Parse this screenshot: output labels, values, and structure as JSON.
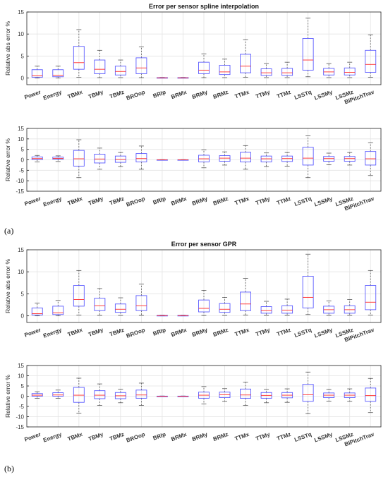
{
  "figure_labels": [
    "(a)",
    "(b)"
  ],
  "colors": {
    "box": "#5a5aff",
    "median": "#ff2a2a",
    "whisker": "#555555",
    "grid": "#e3e3e3",
    "frame": "#222222"
  },
  "chart_data": [
    {
      "type": "box",
      "title": "Error per sensor spline interpolation",
      "ylabel": "Relative abs error %",
      "ylim": [
        -1.5,
        15
      ],
      "yticks": [
        0,
        5,
        10,
        15
      ],
      "grid": true,
      "categories": [
        "Power",
        "Energy",
        "TBMx",
        "TBMy",
        "TBMz",
        "BROop",
        "BRIp",
        "BRMx",
        "BRMy",
        "BRMz",
        "TTMx",
        "TTMy",
        "TTMz",
        "LSSTq",
        "LSSMy",
        "LSSMz",
        "BlPitchTrav"
      ],
      "boxes": [
        {
          "lw": 0,
          "q1": 0.2,
          "med": 0.5,
          "q3": 1.9,
          "uw": 2.7
        },
        {
          "lw": 0,
          "q1": 0.3,
          "med": 0.6,
          "q3": 1.9,
          "uw": 2.7
        },
        {
          "lw": 0.2,
          "q1": 2.0,
          "med": 3.5,
          "q3": 7.2,
          "uw": 11.0
        },
        {
          "lw": 0.1,
          "q1": 1.0,
          "med": 2.0,
          "q3": 4.1,
          "uw": 6.3
        },
        {
          "lw": 0.1,
          "q1": 0.7,
          "med": 1.5,
          "q3": 2.7,
          "uw": 4.1
        },
        {
          "lw": 0.1,
          "q1": 1.0,
          "med": 2.3,
          "q3": 4.6,
          "uw": 7.1
        },
        {
          "lw": 0,
          "q1": 0.02,
          "med": 0.05,
          "q3": 0.1,
          "uw": 0.15
        },
        {
          "lw": 0,
          "q1": 0.02,
          "med": 0.05,
          "q3": 0.1,
          "uw": 0.15
        },
        {
          "lw": 0.1,
          "q1": 1.0,
          "med": 1.8,
          "q3": 3.6,
          "uw": 5.5
        },
        {
          "lw": 0.1,
          "q1": 0.8,
          "med": 1.4,
          "q3": 2.9,
          "uw": 4.3
        },
        {
          "lw": 0.2,
          "q1": 1.2,
          "med": 2.7,
          "q3": 5.4,
          "uw": 8.7
        },
        {
          "lw": 0.1,
          "q1": 0.6,
          "med": 1.2,
          "q3": 2.1,
          "uw": 3.3
        },
        {
          "lw": 0.1,
          "q1": 0.6,
          "med": 1.2,
          "q3": 2.2,
          "uw": 3.6
        },
        {
          "lw": 0.3,
          "q1": 1.8,
          "med": 4.1,
          "q3": 9.0,
          "uw": 13.6
        },
        {
          "lw": 0.1,
          "q1": 0.7,
          "med": 1.4,
          "q3": 2.2,
          "uw": 3.3
        },
        {
          "lw": 0.1,
          "q1": 0.7,
          "med": 1.3,
          "q3": 2.3,
          "uw": 3.6
        },
        {
          "lw": 0.2,
          "q1": 1.3,
          "med": 3.1,
          "q3": 6.3,
          "uw": 9.8
        }
      ]
    },
    {
      "type": "box",
      "title": "",
      "ylabel": "Relative error %",
      "ylim": [
        -15,
        15
      ],
      "yticks": [
        -15,
        -10,
        -5,
        0,
        5,
        10,
        15
      ],
      "grid": true,
      "categories": [
        "Power",
        "Energy",
        "TBMx",
        "TBMy",
        "TBMz",
        "BROop",
        "BRIp",
        "BRMx",
        "BRMy",
        "BRMz",
        "TTMx",
        "TTMy",
        "TTMz",
        "LSSTq",
        "LSSMy",
        "LSSMz",
        "BlPitchTrav"
      ],
      "boxes": [
        {
          "lw": -1.0,
          "q1": 0.1,
          "med": 0.6,
          "q3": 1.4,
          "uw": 2.1
        },
        {
          "lw": -0.8,
          "q1": 0.3,
          "med": 0.7,
          "q3": 1.3,
          "uw": 1.9
        },
        {
          "lw": -8.5,
          "q1": -3.0,
          "med": 0.5,
          "q3": 4.5,
          "uw": 9.6
        },
        {
          "lw": -4.5,
          "q1": -1.5,
          "med": 0.4,
          "q3": 2.7,
          "uw": 5.6
        },
        {
          "lw": -3.2,
          "q1": -1.2,
          "med": 0.2,
          "q3": 1.8,
          "uw": 3.5
        },
        {
          "lw": -4.5,
          "q1": -1.0,
          "med": 0.6,
          "q3": 3.0,
          "uw": 6.6
        },
        {
          "lw": -0.1,
          "q1": -0.05,
          "med": 0,
          "q3": 0.05,
          "uw": 0.1
        },
        {
          "lw": -0.1,
          "q1": -0.05,
          "med": 0,
          "q3": 0.05,
          "uw": 0.1
        },
        {
          "lw": -3.8,
          "q1": -1.0,
          "med": 0.5,
          "q3": 2.2,
          "uw": 4.8
        },
        {
          "lw": -2.5,
          "q1": -0.7,
          "med": 0.8,
          "q3": 2.0,
          "uw": 3.8
        },
        {
          "lw": -4.5,
          "q1": -1.0,
          "med": 0.8,
          "q3": 3.6,
          "uw": 6.8
        },
        {
          "lw": -3.2,
          "q1": -1.0,
          "med": 0.5,
          "q3": 1.8,
          "uw": 3.3
        },
        {
          "lw": -3.0,
          "q1": -0.8,
          "med": 0.6,
          "q3": 1.8,
          "uw": 3.5
        },
        {
          "lw": -8.5,
          "q1": -2.5,
          "med": 0.8,
          "q3": 6.0,
          "uw": 11.5
        },
        {
          "lw": -2.4,
          "q1": -0.7,
          "med": 0.6,
          "q3": 1.6,
          "uw": 3.2
        },
        {
          "lw": -2.5,
          "q1": -0.7,
          "med": 0.6,
          "q3": 1.6,
          "uw": 3.5
        },
        {
          "lw": -7.5,
          "q1": -2.5,
          "med": 0.5,
          "q3": 4.0,
          "uw": 8.2
        }
      ]
    },
    {
      "type": "box",
      "title": "Error per sensor GPR",
      "ylabel": "Relative abs error %",
      "ylim": [
        -1.5,
        15
      ],
      "yticks": [
        0,
        5,
        10,
        15
      ],
      "grid": true,
      "categories": [
        "Power",
        "Energy",
        "TBMx",
        "TBMy",
        "TBMz",
        "BROop",
        "BRIp",
        "BRMx",
        "BRMy",
        "BRMz",
        "TTMx",
        "TTMy",
        "TTMz",
        "LSSTq",
        "LSSMy",
        "LSSMz",
        "BlPitchTrav"
      ],
      "boxes": [
        {
          "lw": 0,
          "q1": 0.2,
          "med": 0.5,
          "q3": 1.8,
          "uw": 2.9
        },
        {
          "lw": 0,
          "q1": 0.3,
          "med": 0.7,
          "q3": 2.2,
          "uw": 3.5
        },
        {
          "lw": 0.2,
          "q1": 2.2,
          "med": 3.7,
          "q3": 6.9,
          "uw": 10.3
        },
        {
          "lw": 0.1,
          "q1": 1.2,
          "med": 2.3,
          "q3": 4.0,
          "uw": 6.2
        },
        {
          "lw": 0.1,
          "q1": 0.8,
          "med": 1.5,
          "q3": 2.7,
          "uw": 4.1
        },
        {
          "lw": 0.1,
          "q1": 1.2,
          "med": 2.3,
          "q3": 4.6,
          "uw": 7.2
        },
        {
          "lw": 0,
          "q1": 0.02,
          "med": 0.05,
          "q3": 0.1,
          "uw": 0.15
        },
        {
          "lw": 0,
          "q1": 0.02,
          "med": 0.05,
          "q3": 0.1,
          "uw": 0.15
        },
        {
          "lw": 0.1,
          "q1": 0.9,
          "med": 1.7,
          "q3": 3.6,
          "uw": 5.8
        },
        {
          "lw": 0.1,
          "q1": 0.8,
          "med": 1.5,
          "q3": 2.8,
          "uw": 4.2
        },
        {
          "lw": 0.2,
          "q1": 1.2,
          "med": 2.7,
          "q3": 5.4,
          "uw": 8.5
        },
        {
          "lw": 0.1,
          "q1": 0.6,
          "med": 1.2,
          "q3": 2.1,
          "uw": 3.3
        },
        {
          "lw": 0.1,
          "q1": 0.6,
          "med": 1.3,
          "q3": 2.3,
          "uw": 3.8
        },
        {
          "lw": 0.3,
          "q1": 1.8,
          "med": 4.2,
          "q3": 9.0,
          "uw": 14.0
        },
        {
          "lw": 0.1,
          "q1": 0.6,
          "med": 1.4,
          "q3": 2.2,
          "uw": 3.4
        },
        {
          "lw": 0.1,
          "q1": 0.6,
          "med": 1.4,
          "q3": 2.3,
          "uw": 3.7
        },
        {
          "lw": 0.2,
          "q1": 1.4,
          "med": 3.1,
          "q3": 6.9,
          "uw": 10.3
        }
      ]
    },
    {
      "type": "box",
      "title": "",
      "ylabel": "Relative error %",
      "ylim": [
        -15,
        15
      ],
      "yticks": [
        -15,
        -10,
        -5,
        0,
        5,
        10,
        15
      ],
      "grid": true,
      "categories": [
        "Power",
        "Energy",
        "TBMx",
        "TBMy",
        "TBMz",
        "BROop",
        "BRIp",
        "BRMx",
        "BRMy",
        "BRMz",
        "TTMx",
        "TTMy",
        "TTMz",
        "LSSTq",
        "LSSMy",
        "LSSMz",
        "BlPitchTrav"
      ],
      "boxes": [
        {
          "lw": -1.0,
          "q1": 0.0,
          "med": 0.5,
          "q3": 1.3,
          "uw": 2.2
        },
        {
          "lw": -1.0,
          "q1": 0.0,
          "med": 0.6,
          "q3": 1.7,
          "uw": 3.0
        },
        {
          "lw": -8.3,
          "q1": -3.0,
          "med": 0.5,
          "q3": 4.3,
          "uw": 8.8
        },
        {
          "lw": -4.5,
          "q1": -1.2,
          "med": 0.5,
          "q3": 2.7,
          "uw": 6.0
        },
        {
          "lw": -3.2,
          "q1": -1.2,
          "med": 0.2,
          "q3": 1.8,
          "uw": 3.4
        },
        {
          "lw": -4.5,
          "q1": -1.0,
          "med": 0.6,
          "q3": 3.0,
          "uw": 6.4
        },
        {
          "lw": -0.1,
          "q1": -0.05,
          "med": 0,
          "q3": 0.05,
          "uw": 0.1
        },
        {
          "lw": -0.1,
          "q1": -0.05,
          "med": 0,
          "q3": 0.05,
          "uw": 0.1
        },
        {
          "lw": -3.8,
          "q1": -1.0,
          "med": 0.5,
          "q3": 2.0,
          "uw": 4.7
        },
        {
          "lw": -2.5,
          "q1": -0.7,
          "med": 0.7,
          "q3": 2.0,
          "uw": 3.7
        },
        {
          "lw": -4.5,
          "q1": -1.0,
          "med": 0.6,
          "q3": 3.5,
          "uw": 6.8
        },
        {
          "lw": -3.2,
          "q1": -1.0,
          "med": 0.4,
          "q3": 1.8,
          "uw": 3.3
        },
        {
          "lw": -3.0,
          "q1": -0.8,
          "med": 0.5,
          "q3": 1.8,
          "uw": 3.6
        },
        {
          "lw": -8.5,
          "q1": -2.5,
          "med": 0.7,
          "q3": 5.8,
          "uw": 11.8
        },
        {
          "lw": -2.4,
          "q1": -0.7,
          "med": 0.5,
          "q3": 1.6,
          "uw": 3.3
        },
        {
          "lw": -2.5,
          "q1": -0.7,
          "med": 0.5,
          "q3": 1.6,
          "uw": 3.6
        },
        {
          "lw": -8.0,
          "q1": -2.5,
          "med": 0.3,
          "q3": 4.0,
          "uw": 8.7
        }
      ]
    }
  ]
}
